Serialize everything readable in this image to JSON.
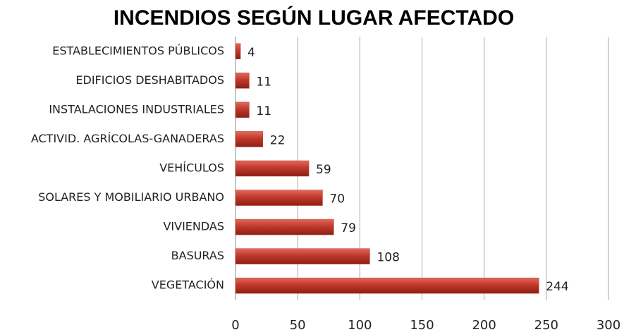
{
  "chart_data": {
    "type": "bar",
    "title": "INCENDIOS SEGÚN LUGAR AFECTADO",
    "categories": [
      "ESTABLECIMIENTOS PÚBLICOS",
      "EDIFICIOS DESHABITADOS",
      "INSTALACIONES INDUSTRIALES",
      "ACTIVID. AGRÍCOLAS-GANADERAS",
      "VEHÍCULOS",
      "SOLARES Y MOBILIARIO URBANO",
      "VIVIENDAS",
      "BASURAS",
      "VEGETACIÓN"
    ],
    "values": [
      4,
      11,
      11,
      22,
      59,
      70,
      79,
      108,
      244
    ],
    "color": "#c0392b",
    "xlim": [
      0,
      300
    ],
    "xticks": [
      0,
      50,
      100,
      150,
      200,
      250,
      300
    ],
    "grid": true
  }
}
